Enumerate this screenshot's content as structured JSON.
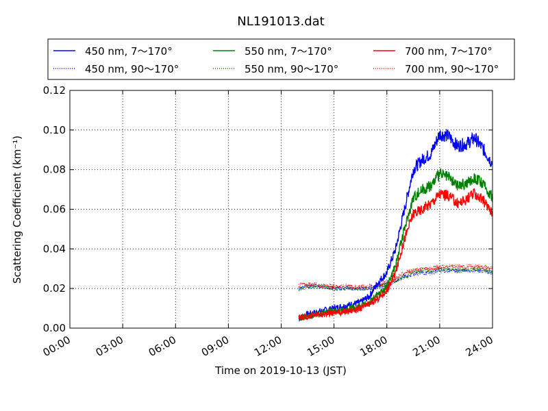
{
  "chart_data": {
    "type": "line",
    "title": "NL191013.dat",
    "xlabel": "Time on 2019-10-13 (JST)",
    "ylabel": "Scattering Coefficient (km⁻¹)",
    "xlim": [
      0,
      24
    ],
    "ylim": [
      0,
      0.12
    ],
    "x_ticks": [
      0,
      3,
      6,
      9,
      12,
      15,
      18,
      21,
      24
    ],
    "x_tick_labels": [
      "00:00",
      "03:00",
      "06:00",
      "09:00",
      "12:00",
      "15:00",
      "18:00",
      "21:00",
      "24:00"
    ],
    "y_ticks": [
      0,
      0.02,
      0.04,
      0.06,
      0.08,
      0.1,
      0.12
    ],
    "y_tick_labels": [
      "0.00",
      "0.02",
      "0.04",
      "0.06",
      "0.08",
      "0.10",
      "0.12"
    ],
    "grid": true,
    "legend_position": "top (above plot, 3 columns)",
    "x": [
      13.0,
      13.5,
      14.0,
      14.5,
      15.0,
      15.5,
      16.0,
      16.5,
      17.0,
      17.5,
      18.0,
      18.5,
      19.0,
      19.5,
      20.0,
      20.5,
      21.0,
      21.5,
      22.0,
      22.5,
      23.0,
      23.5,
      24.0
    ],
    "series": [
      {
        "name": "450 nm, 7～170°",
        "color": "#0000ff",
        "style": "solid",
        "values": [
          0.005,
          0.007,
          0.008,
          0.009,
          0.01,
          0.011,
          0.012,
          0.013,
          0.016,
          0.023,
          0.028,
          0.04,
          0.06,
          0.08,
          0.085,
          0.088,
          0.098,
          0.097,
          0.092,
          0.093,
          0.096,
          0.09,
          0.083
        ]
      },
      {
        "name": "450 nm, 90～170°",
        "color": "#0000ff",
        "style": "dotted",
        "values": [
          0.02,
          0.021,
          0.021,
          0.021,
          0.02,
          0.02,
          0.02,
          0.02,
          0.02,
          0.021,
          0.022,
          0.024,
          0.026,
          0.027,
          0.028,
          0.028,
          0.029,
          0.029,
          0.029,
          0.029,
          0.029,
          0.029,
          0.028
        ]
      },
      {
        "name": "550 nm, 7～170°",
        "color": "#008000",
        "style": "solid",
        "values": [
          0.005,
          0.006,
          0.007,
          0.008,
          0.009,
          0.009,
          0.01,
          0.011,
          0.013,
          0.017,
          0.021,
          0.032,
          0.05,
          0.066,
          0.07,
          0.072,
          0.078,
          0.076,
          0.072,
          0.073,
          0.076,
          0.072,
          0.066
        ]
      },
      {
        "name": "550 nm, 90～170°",
        "color": "#008000",
        "style": "dotted",
        "values": [
          0.02,
          0.021,
          0.021,
          0.021,
          0.02,
          0.02,
          0.02,
          0.02,
          0.02,
          0.021,
          0.022,
          0.024,
          0.026,
          0.028,
          0.029,
          0.029,
          0.03,
          0.03,
          0.029,
          0.029,
          0.03,
          0.029,
          0.028
        ]
      },
      {
        "name": "700 nm, 7～170°",
        "color": "#ff0000",
        "style": "solid",
        "values": [
          0.005,
          0.006,
          0.007,
          0.007,
          0.008,
          0.008,
          0.009,
          0.01,
          0.012,
          0.015,
          0.019,
          0.028,
          0.045,
          0.058,
          0.06,
          0.063,
          0.068,
          0.067,
          0.063,
          0.065,
          0.068,
          0.064,
          0.058
        ]
      },
      {
        "name": "700 nm, 90～170°",
        "color": "#ff0000",
        "style": "dotted",
        "values": [
          0.022,
          0.022,
          0.022,
          0.021,
          0.021,
          0.021,
          0.021,
          0.021,
          0.021,
          0.022,
          0.023,
          0.025,
          0.028,
          0.029,
          0.03,
          0.03,
          0.031,
          0.031,
          0.031,
          0.031,
          0.031,
          0.031,
          0.03
        ]
      }
    ]
  }
}
